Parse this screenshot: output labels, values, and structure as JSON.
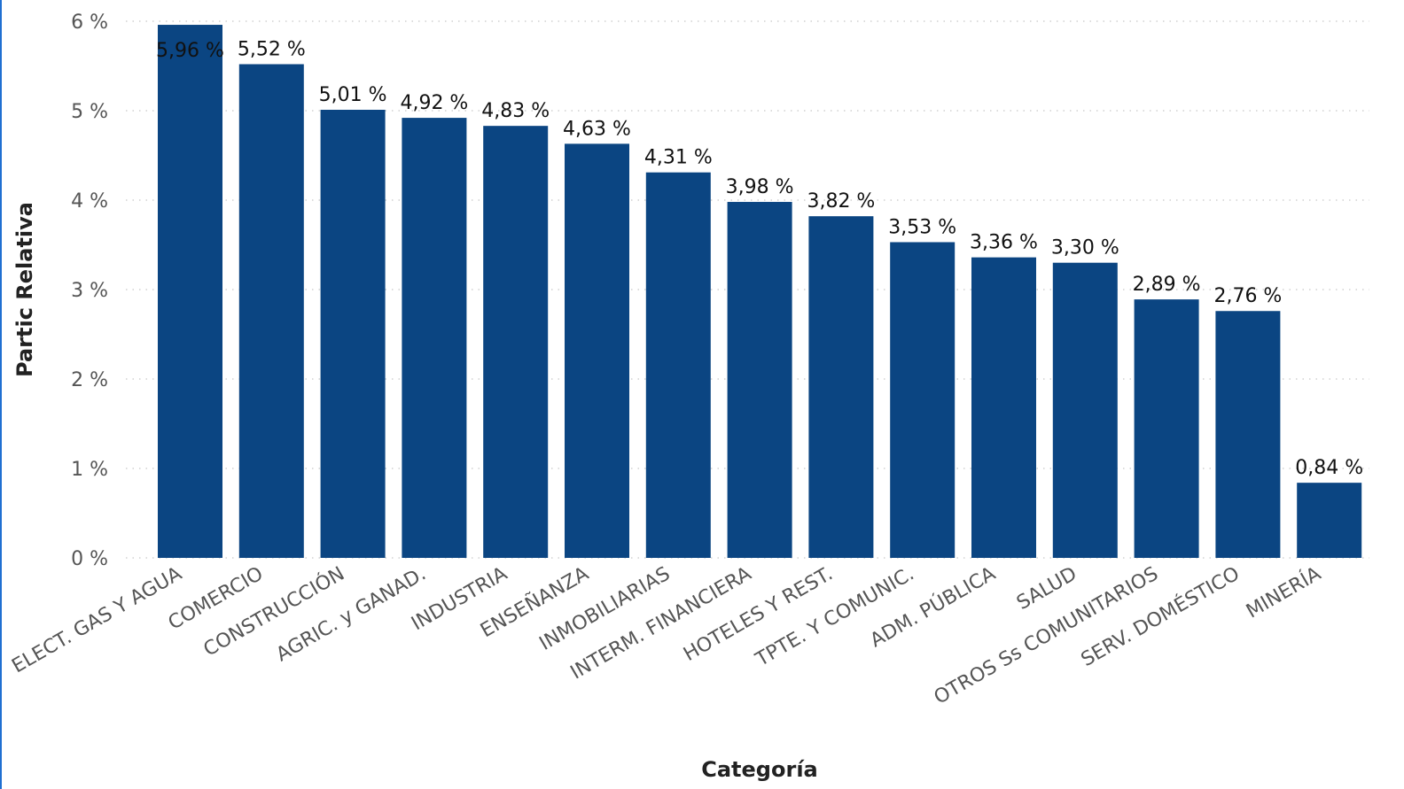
{
  "chart_data": {
    "type": "bar",
    "title": "",
    "xlabel": "Categoría",
    "ylabel": "Partic Relativa",
    "ylim": [
      0,
      6
    ],
    "yticks": [
      0,
      1,
      2,
      3,
      4,
      5,
      6
    ],
    "ytick_suffix": " %",
    "grid": true,
    "categories": [
      "ELECT. GAS Y AGUA",
      "COMERCIO",
      "CONSTRUCCIÓN",
      "AGRIC. y GANAD.",
      "INDUSTRIA",
      "ENSEÑANZA",
      "INMOBILIARIAS",
      "INTERM. FINANCIERA",
      "HOTELES Y REST.",
      "TPTE. Y COMUNIC.",
      "ADM. PÚBLICA",
      "SALUD",
      "OTROS Ss COMUNITARIOS",
      "SERV. DOMÉSTICO",
      "MINERÍA"
    ],
    "values": [
      5.96,
      5.52,
      5.01,
      4.92,
      4.83,
      4.63,
      4.31,
      3.98,
      3.82,
      3.53,
      3.36,
      3.3,
      2.89,
      2.76,
      0.84
    ],
    "data_labels": [
      "5,96 %",
      "5,52 %",
      "5,01 %",
      "4,92 %",
      "4,83 %",
      "4,63 %",
      "4,31 %",
      "3,98 %",
      "3,82 %",
      "3,53 %",
      "3,36 %",
      "3,30 %",
      "2,89 %",
      "2,76 %",
      "0,84 %"
    ],
    "bar_color": "#0b4582"
  }
}
